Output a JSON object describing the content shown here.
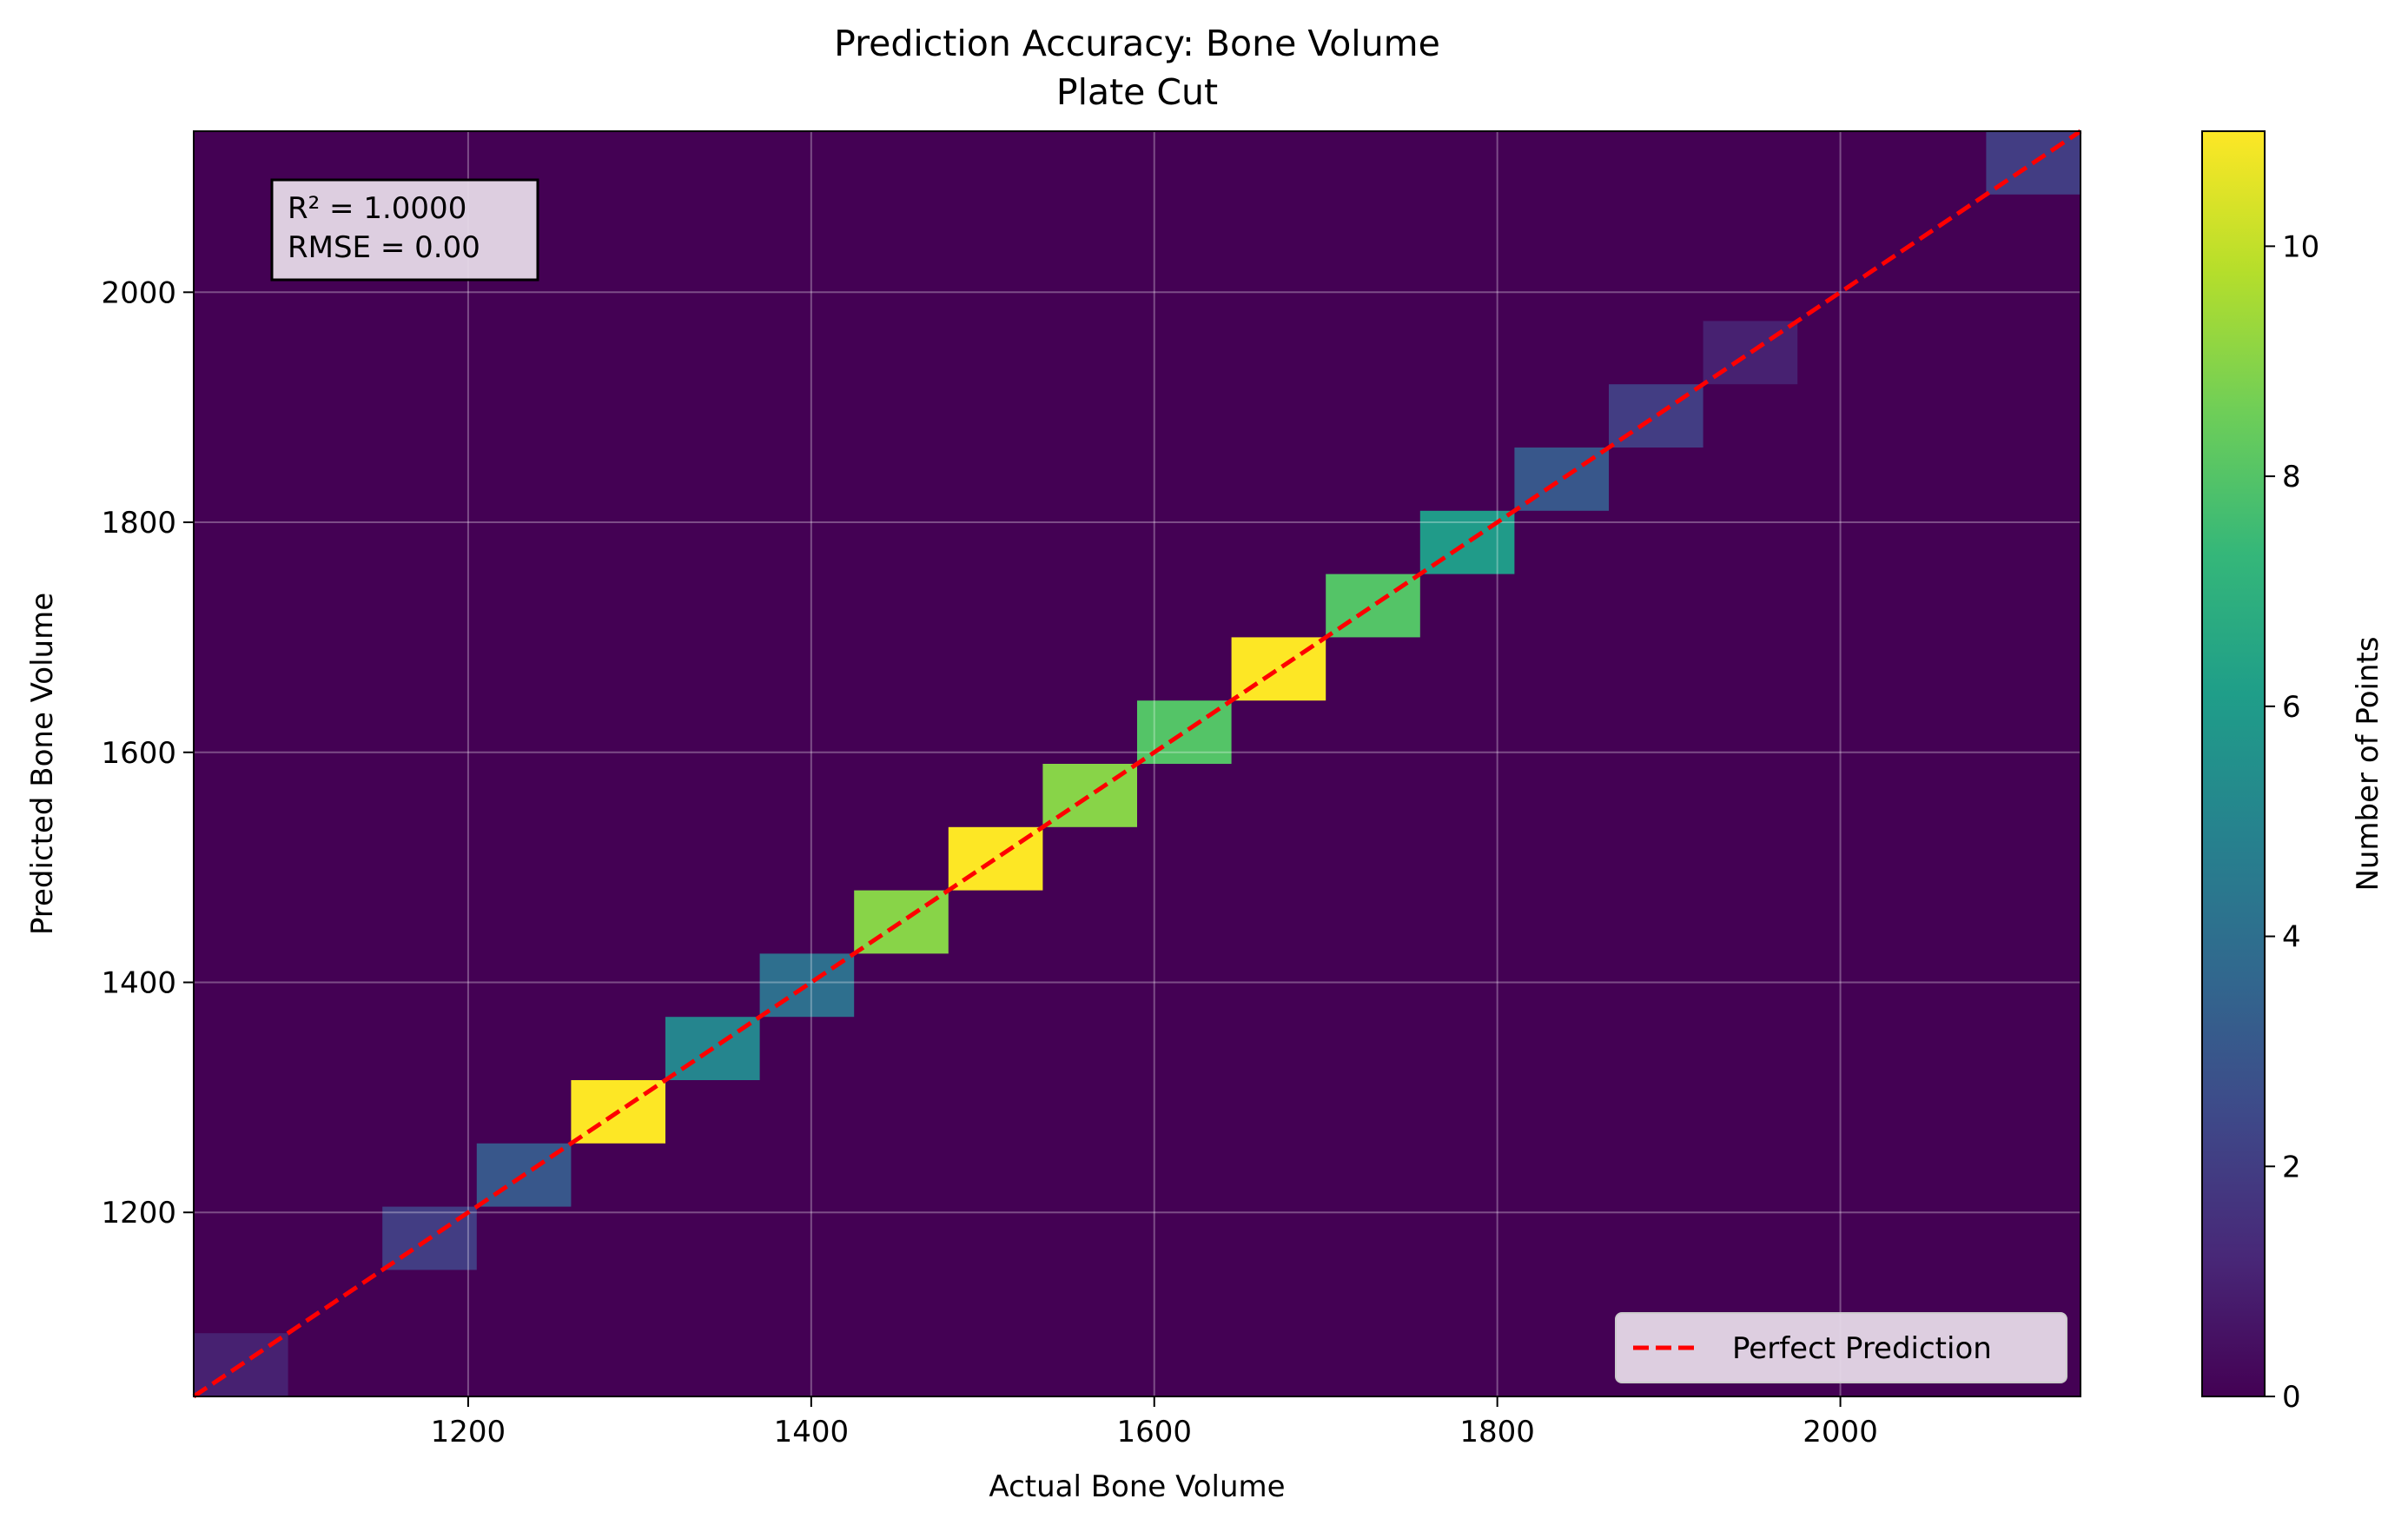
{
  "chart_data": {
    "type": "heatmap",
    "title": "Prediction Accuracy: Bone Volume",
    "subtitle": "Plate Cut",
    "xlabel": "Actual Bone Volume",
    "ylabel": "Predicted Bone Volume",
    "xlim": [
      1040,
      2140
    ],
    "ylim": [
      1040,
      2140
    ],
    "xticks": [
      1200,
      1400,
      1600,
      1800,
      2000
    ],
    "yticks": [
      1200,
      1400,
      1600,
      1800,
      2000
    ],
    "grid": true,
    "bin_size": 55,
    "bins": [
      {
        "x0": 1040,
        "y0": 1040,
        "count": 1
      },
      {
        "x0": 1150,
        "y0": 1150,
        "count": 2
      },
      {
        "x0": 1205,
        "y0": 1205,
        "count": 3
      },
      {
        "x0": 1260,
        "y0": 1260,
        "count": 11
      },
      {
        "x0": 1315,
        "y0": 1315,
        "count": 5
      },
      {
        "x0": 1370,
        "y0": 1370,
        "count": 4
      },
      {
        "x0": 1425,
        "y0": 1425,
        "count": 9
      },
      {
        "x0": 1480,
        "y0": 1480,
        "count": 11
      },
      {
        "x0": 1535,
        "y0": 1535,
        "count": 9
      },
      {
        "x0": 1590,
        "y0": 1590,
        "count": 8
      },
      {
        "x0": 1645,
        "y0": 1645,
        "count": 11
      },
      {
        "x0": 1700,
        "y0": 1700,
        "count": 8
      },
      {
        "x0": 1755,
        "y0": 1755,
        "count": 6
      },
      {
        "x0": 1810,
        "y0": 1810,
        "count": 3
      },
      {
        "x0": 1865,
        "y0": 1865,
        "count": 2
      },
      {
        "x0": 1920,
        "y0": 1920,
        "count": 1
      },
      {
        "x0": 2085,
        "y0": 2085,
        "count": 2
      }
    ],
    "reference_line": {
      "name": "Perfect Prediction",
      "from": [
        1040,
        1040
      ],
      "to": [
        2140,
        2140
      ],
      "color": "#ff0000",
      "style": "dashed"
    },
    "legend_position": "lower-right",
    "annotation": [
      "R² = 1.0000",
      "RMSE = 0.00"
    ],
    "colorbar": {
      "label": "Number of Points",
      "colormap": "viridis",
      "min": 0,
      "max": 11,
      "ticks": [
        0,
        2,
        4,
        6,
        8,
        10
      ]
    },
    "background_color": "#440154"
  }
}
